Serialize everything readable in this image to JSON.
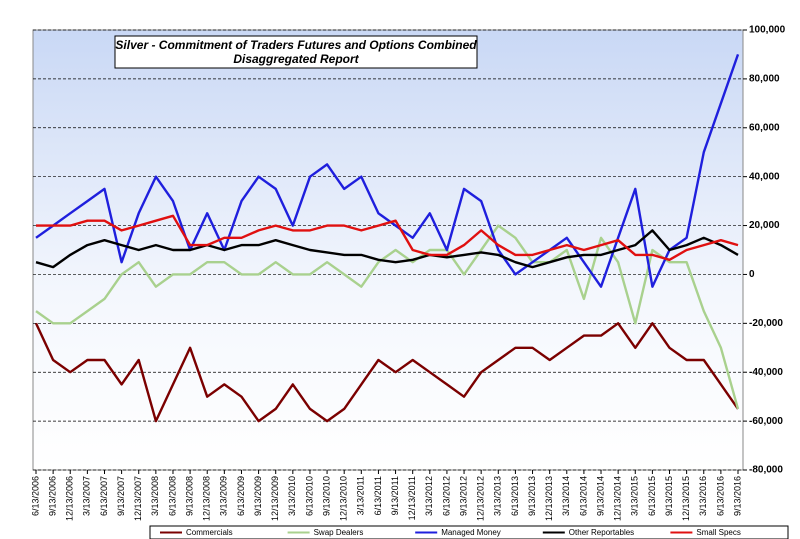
{
  "chart_data": {
    "type": "line",
    "title": "Silver - Commitment of Traders Futures and Options Combined",
    "subtitle": "Disaggregated  Report",
    "categories": [
      "6/13/2006",
      "9/13/2006",
      "12/13/2006",
      "3/13/2007",
      "6/13/2007",
      "9/13/2007",
      "12/13/2007",
      "3/13/2008",
      "6/13/2008",
      "9/13/2008",
      "12/13/2008",
      "3/13/2009",
      "6/13/2009",
      "9/13/2009",
      "12/13/2009",
      "3/13/2010",
      "6/13/2010",
      "9/13/2010",
      "12/13/2010",
      "3/13/2011",
      "6/13/2011",
      "9/13/2011",
      "12/13/2011",
      "3/13/2012",
      "6/13/2012",
      "9/13/2012",
      "12/13/2012",
      "3/13/2013",
      "6/13/2013",
      "9/13/2013",
      "12/13/2013",
      "3/13/2014",
      "6/13/2014",
      "9/13/2014",
      "12/13/2014",
      "3/13/2015",
      "6/13/2015",
      "9/13/2015",
      "12/13/2015",
      "3/13/2016",
      "6/13/2016",
      "9/13/2016"
    ],
    "series": [
      {
        "name": "Commercials",
        "color": "#7b0000",
        "values": [
          -20000,
          -35000,
          -40000,
          -35000,
          -35000,
          -45000,
          -35000,
          -60000,
          -45000,
          -30000,
          -50000,
          -45000,
          -50000,
          -60000,
          -55000,
          -45000,
          -55000,
          -60000,
          -55000,
          -45000,
          -35000,
          -40000,
          -35000,
          -40000,
          -45000,
          -50000,
          -40000,
          -35000,
          -30000,
          -30000,
          -35000,
          -30000,
          -25000,
          -25000,
          -20000,
          -30000,
          -20000,
          -30000,
          -35000,
          -35000,
          -45000,
          -55000
        ]
      },
      {
        "name": "Swap Dealers",
        "color": "#a9d18e",
        "values": [
          -15000,
          -20000,
          -20000,
          -15000,
          -10000,
          0,
          5000,
          -5000,
          0,
          0,
          5000,
          5000,
          0,
          0,
          5000,
          0,
          0,
          5000,
          0,
          -5000,
          5000,
          10000,
          5000,
          10000,
          10000,
          0,
          10000,
          20000,
          15000,
          5000,
          5000,
          10000,
          -10000,
          15000,
          5000,
          -20000,
          10000,
          5000,
          5000,
          -15000,
          -30000,
          -55000
        ]
      },
      {
        "name": "Managed Money",
        "color": "#1f1fdd",
        "values": [
          15000,
          20000,
          25000,
          30000,
          35000,
          5000,
          25000,
          40000,
          30000,
          10000,
          25000,
          10000,
          30000,
          40000,
          35000,
          20000,
          40000,
          45000,
          35000,
          40000,
          25000,
          20000,
          15000,
          25000,
          10000,
          35000,
          30000,
          10000,
          0,
          5000,
          10000,
          15000,
          5000,
          -5000,
          15000,
          35000,
          -5000,
          10000,
          15000,
          50000,
          70000,
          90000
        ]
      },
      {
        "name": "Other Reportables",
        "color": "#000000",
        "values": [
          5000,
          3000,
          8000,
          12000,
          14000,
          12000,
          10000,
          12000,
          10000,
          10000,
          12000,
          10000,
          12000,
          12000,
          14000,
          12000,
          10000,
          9000,
          8000,
          8000,
          6000,
          5000,
          6000,
          8000,
          7000,
          8000,
          9000,
          8000,
          5000,
          3000,
          5000,
          7000,
          8000,
          8000,
          10000,
          12000,
          18000,
          10000,
          12000,
          15000,
          12000,
          8000
        ]
      },
      {
        "name": "Small Specs",
        "color": "#e01010",
        "values": [
          20000,
          20000,
          20000,
          22000,
          22000,
          18000,
          20000,
          22000,
          24000,
          12000,
          12000,
          15000,
          15000,
          18000,
          20000,
          18000,
          18000,
          20000,
          20000,
          18000,
          20000,
          22000,
          10000,
          8000,
          8000,
          12000,
          18000,
          12000,
          8000,
          8000,
          10000,
          12000,
          10000,
          12000,
          14000,
          8000,
          8000,
          6000,
          10000,
          12000,
          14000,
          12000
        ]
      }
    ],
    "ylim": [
      -80000,
      100000
    ],
    "yticks": [
      {
        "value": -80000,
        "label": "-80,000"
      },
      {
        "value": -60000,
        "label": "-60,000"
      },
      {
        "value": -40000,
        "label": "-40,000"
      },
      {
        "value": -20000,
        "label": "-20,000"
      },
      0,
      {
        "value": 20000,
        "label": "20,000"
      },
      {
        "value": 40000,
        "label": "40,000"
      },
      {
        "value": 60000,
        "label": "60,000"
      },
      {
        "value": 80000,
        "label": "80,000"
      },
      {
        "value": 100000,
        "label": "100,000"
      }
    ],
    "grid": true
  }
}
